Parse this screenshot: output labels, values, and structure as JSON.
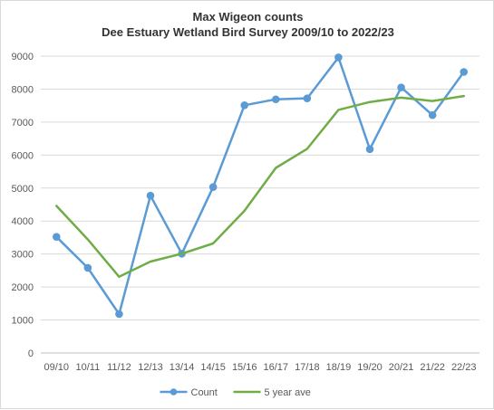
{
  "chart_data": {
    "type": "line",
    "title": "Max Wigeon counts",
    "subtitle": "Dee Estuary Wetland Bird Survey 2009/10 to 2022/23",
    "xlabel": "",
    "ylabel": "",
    "categories": [
      "09/10",
      "10/11",
      "11/12",
      "12/13",
      "13/14",
      "14/15",
      "15/16",
      "16/17",
      "17/18",
      "18/19",
      "19/20",
      "20/21",
      "21/22",
      "22/23"
    ],
    "ylim": [
      0,
      9000
    ],
    "yticks": [
      0,
      1000,
      2000,
      3000,
      4000,
      5000,
      6000,
      7000,
      8000,
      9000
    ],
    "grid": true,
    "legend_position": "bottom",
    "series": [
      {
        "name": "Count",
        "color": "#5b9bd5",
        "markers": true,
        "values": [
          3520,
          2580,
          1180,
          4770,
          3010,
          5030,
          7510,
          7690,
          7720,
          8960,
          6180,
          8050,
          7210,
          8520
        ]
      },
      {
        "name": "5 year ave",
        "color": "#70ad47",
        "markers": false,
        "start_index": 0,
        "values": [
          4460,
          3440,
          2310,
          2770,
          3010,
          3320,
          4310,
          5610,
          6190,
          7370,
          7610,
          7740,
          7640,
          7790
        ]
      }
    ]
  }
}
